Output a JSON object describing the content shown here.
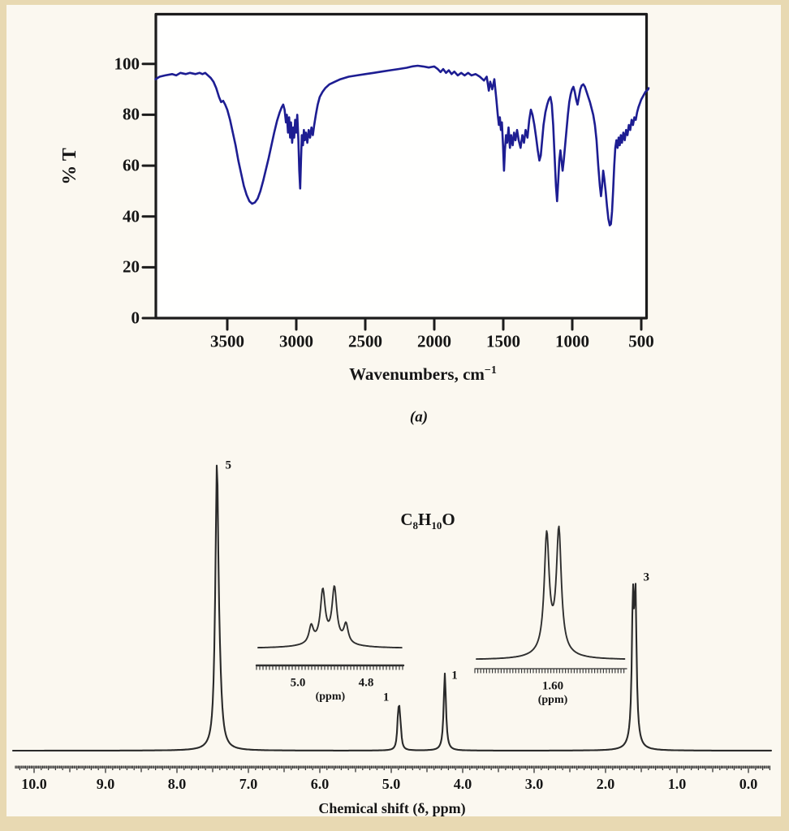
{
  "page": {
    "sheet_color": "#fbf8f0",
    "frame_color": "#e8d9b2",
    "text_color": "#161616"
  },
  "chart_data": [
    {
      "id": "ir",
      "type": "line",
      "panel_label": "(a)",
      "xlabel_base": "Wavenumbers, cm",
      "xlabel_sup": "−1",
      "ylabel": "% T",
      "x_ticks": [
        3500,
        3000,
        2500,
        2000,
        1500,
        1000,
        500
      ],
      "y_ticks": [
        100,
        80,
        60,
        40,
        20,
        0
      ],
      "xlim": [
        4020,
        447
      ],
      "ylim": [
        0,
        120
      ],
      "grid": false,
      "line_color": "#1d1d92",
      "points": [
        [
          4020,
          94
        ],
        [
          3990,
          95
        ],
        [
          3950,
          95.5
        ],
        [
          3900,
          96
        ],
        [
          3870,
          95.5
        ],
        [
          3840,
          96.5
        ],
        [
          3800,
          96
        ],
        [
          3770,
          96.5
        ],
        [
          3730,
          96
        ],
        [
          3700,
          96.5
        ],
        [
          3680,
          96
        ],
        [
          3660,
          96.5
        ],
        [
          3640,
          95.5
        ],
        [
          3620,
          94.5
        ],
        [
          3600,
          93
        ],
        [
          3580,
          90.5
        ],
        [
          3560,
          87
        ],
        [
          3545,
          85
        ],
        [
          3530,
          85.5
        ],
        [
          3515,
          84
        ],
        [
          3500,
          82
        ],
        [
          3480,
          78
        ],
        [
          3460,
          73
        ],
        [
          3440,
          68
        ],
        [
          3420,
          62
        ],
        [
          3400,
          57
        ],
        [
          3380,
          52
        ],
        [
          3360,
          48.5
        ],
        [
          3340,
          46
        ],
        [
          3320,
          45
        ],
        [
          3300,
          45.5
        ],
        [
          3280,
          47
        ],
        [
          3260,
          50
        ],
        [
          3240,
          54
        ],
        [
          3220,
          58.5
        ],
        [
          3200,
          63
        ],
        [
          3180,
          68
        ],
        [
          3160,
          73
        ],
        [
          3140,
          77.5
        ],
        [
          3120,
          81
        ],
        [
          3105,
          83
        ],
        [
          3095,
          84
        ],
        [
          3085,
          82
        ],
        [
          3075,
          77
        ],
        [
          3068,
          80
        ],
        [
          3060,
          73
        ],
        [
          3052,
          79
        ],
        [
          3045,
          71
        ],
        [
          3038,
          77
        ],
        [
          3030,
          69
        ],
        [
          3022,
          75
        ],
        [
          3015,
          71
        ],
        [
          3008,
          78
        ],
        [
          3000,
          73
        ],
        [
          2993,
          80
        ],
        [
          2985,
          70
        ],
        [
          2978,
          58
        ],
        [
          2972,
          51
        ],
        [
          2966,
          62
        ],
        [
          2960,
          72
        ],
        [
          2952,
          68
        ],
        [
          2945,
          74
        ],
        [
          2938,
          70
        ],
        [
          2930,
          73
        ],
        [
          2920,
          69
        ],
        [
          2910,
          74
        ],
        [
          2900,
          71
        ],
        [
          2890,
          75
        ],
        [
          2880,
          72
        ],
        [
          2870,
          76
        ],
        [
          2858,
          80
        ],
        [
          2845,
          84
        ],
        [
          2830,
          87
        ],
        [
          2810,
          89
        ],
        [
          2790,
          90.5
        ],
        [
          2760,
          92
        ],
        [
          2720,
          93
        ],
        [
          2680,
          94
        ],
        [
          2620,
          95
        ],
        [
          2560,
          95.5
        ],
        [
          2500,
          96
        ],
        [
          2440,
          96.5
        ],
        [
          2380,
          97
        ],
        [
          2320,
          97.5
        ],
        [
          2260,
          98
        ],
        [
          2200,
          98.5
        ],
        [
          2160,
          99
        ],
        [
          2120,
          99.3
        ],
        [
          2080,
          99
        ],
        [
          2040,
          98.6
        ],
        [
          2000,
          99
        ],
        [
          1975,
          98
        ],
        [
          1955,
          96.8
        ],
        [
          1935,
          98
        ],
        [
          1915,
          96.5
        ],
        [
          1895,
          97.5
        ],
        [
          1875,
          96
        ],
        [
          1855,
          97
        ],
        [
          1830,
          95.5
        ],
        [
          1805,
          96.5
        ],
        [
          1780,
          95.5
        ],
        [
          1755,
          96.5
        ],
        [
          1730,
          95.5
        ],
        [
          1700,
          96
        ],
        [
          1670,
          95
        ],
        [
          1640,
          93.5
        ],
        [
          1620,
          95
        ],
        [
          1605,
          89.5
        ],
        [
          1595,
          93
        ],
        [
          1580,
          90
        ],
        [
          1565,
          94
        ],
        [
          1550,
          86
        ],
        [
          1540,
          80
        ],
        [
          1532,
          76
        ],
        [
          1525,
          79
        ],
        [
          1517,
          74
        ],
        [
          1510,
          77
        ],
        [
          1502,
          68
        ],
        [
          1495,
          58
        ],
        [
          1488,
          66
        ],
        [
          1480,
          72
        ],
        [
          1472,
          69
        ],
        [
          1462,
          75
        ],
        [
          1452,
          67
        ],
        [
          1443,
          72
        ],
        [
          1432,
          68
        ],
        [
          1422,
          73
        ],
        [
          1412,
          70
        ],
        [
          1400,
          74
        ],
        [
          1388,
          70
        ],
        [
          1375,
          67
        ],
        [
          1362,
          72
        ],
        [
          1350,
          69
        ],
        [
          1338,
          74
        ],
        [
          1325,
          71
        ],
        [
          1312,
          78
        ],
        [
          1300,
          82
        ],
        [
          1288,
          80
        ],
        [
          1275,
          76
        ],
        [
          1262,
          71
        ],
        [
          1250,
          66
        ],
        [
          1238,
          62
        ],
        [
          1228,
          64
        ],
        [
          1218,
          70
        ],
        [
          1208,
          76
        ],
        [
          1195,
          81
        ],
        [
          1182,
          84
        ],
        [
          1170,
          86
        ],
        [
          1158,
          87
        ],
        [
          1148,
          84
        ],
        [
          1138,
          76
        ],
        [
          1128,
          64
        ],
        [
          1118,
          52
        ],
        [
          1110,
          46
        ],
        [
          1102,
          54
        ],
        [
          1094,
          62
        ],
        [
          1086,
          66
        ],
        [
          1078,
          62
        ],
        [
          1070,
          58
        ],
        [
          1062,
          62
        ],
        [
          1052,
          68
        ],
        [
          1042,
          74
        ],
        [
          1032,
          80
        ],
        [
          1022,
          85
        ],
        [
          1012,
          88
        ],
        [
          1002,
          90
        ],
        [
          992,
          91
        ],
        [
          982,
          89
        ],
        [
          972,
          86
        ],
        [
          962,
          84
        ],
        [
          952,
          87
        ],
        [
          942,
          90
        ],
        [
          932,
          91.5
        ],
        [
          920,
          92
        ],
        [
          908,
          91
        ],
        [
          896,
          89
        ],
        [
          884,
          87
        ],
        [
          872,
          85
        ],
        [
          860,
          82.5
        ],
        [
          848,
          80
        ],
        [
          836,
          76
        ],
        [
          824,
          70
        ],
        [
          812,
          60
        ],
        [
          800,
          52
        ],
        [
          792,
          48
        ],
        [
          784,
          52
        ],
        [
          776,
          58
        ],
        [
          768,
          55
        ],
        [
          758,
          50
        ],
        [
          748,
          44
        ],
        [
          738,
          39
        ],
        [
          728,
          36.5
        ],
        [
          720,
          37
        ],
        [
          712,
          42
        ],
        [
          704,
          50
        ],
        [
          696,
          60
        ],
        [
          688,
          67
        ],
        [
          680,
          70
        ],
        [
          672,
          67
        ],
        [
          664,
          71
        ],
        [
          656,
          68
        ],
        [
          648,
          72
        ],
        [
          640,
          69
        ],
        [
          630,
          73
        ],
        [
          620,
          70
        ],
        [
          610,
          74
        ],
        [
          600,
          72
        ],
        [
          590,
          76
        ],
        [
          580,
          74
        ],
        [
          570,
          78
        ],
        [
          560,
          76
        ],
        [
          550,
          79
        ],
        [
          540,
          78
        ],
        [
          530,
          81
        ],
        [
          520,
          83
        ],
        [
          510,
          84.5
        ],
        [
          500,
          86
        ],
        [
          490,
          87
        ],
        [
          480,
          88
        ],
        [
          470,
          89
        ],
        [
          460,
          89.5
        ],
        [
          450,
          90
        ],
        [
          447,
          90.5
        ]
      ]
    },
    {
      "id": "nmr",
      "type": "line",
      "formula_display": "C8H10O",
      "formula_parts": [
        "C",
        "8",
        "H",
        "10",
        "O"
      ],
      "xlabel": "Chemical shift (δ, ppm)",
      "x_tick_labels": [
        "10.0",
        "9.0",
        "8.0",
        "7.0",
        "6.0",
        "5.0",
        "4.0",
        "3.0",
        "2.0",
        "1.0",
        "0.0"
      ],
      "x_tick_ppms": [
        10.0,
        9.0,
        8.0,
        7.0,
        6.0,
        5.0,
        4.0,
        3.0,
        2.0,
        1.0,
        0.0
      ],
      "xlim": [
        10.3,
        -0.35
      ],
      "grid": false,
      "line_color": "#2a2a2a",
      "peaks": [
        {
          "ppm": 7.44,
          "integration": "5",
          "multiplicity": "multiplet",
          "components": [
            [
              7.465,
              30,
              2.0
            ],
            [
              7.44,
              315,
              2.1
            ],
            [
              7.405,
              55,
              3.2
            ]
          ],
          "label_dx": 14,
          "label_dy": 6
        },
        {
          "ppm": 4.89,
          "integration": "1",
          "multiplicity": "quartet",
          "components": [
            [
              4.905,
              26,
              1.3
            ],
            [
              4.888,
              40,
              1.5
            ],
            [
              4.868,
              14,
              1.3
            ]
          ],
          "label_dx": -16,
          "label_dy": -8
        },
        {
          "ppm": 4.25,
          "integration": "1",
          "multiplicity": "singlet",
          "components": [
            [
              4.25,
              95,
              1.7
            ]
          ],
          "label_dx": 12,
          "label_dy": 3
        },
        {
          "ppm": 1.6,
          "integration": "3",
          "multiplicity": "doublet",
          "components": [
            [
              1.617,
              160,
              1.55
            ],
            [
              1.581,
              165,
              1.55
            ],
            [
              1.6,
              14,
              6
            ]
          ],
          "label_dx": 15,
          "label_dy": -3
        }
      ],
      "insets": [
        {
          "tick_labels": [
            "5.0",
            "4.8"
          ],
          "tick_ppms": [
            5.0,
            4.8
          ],
          "unit_label": "(ppm)",
          "center_ppm": 4.905,
          "pattern": "quartet",
          "J_ppm": 0.034,
          "components": [
            [
              4.961,
              21,
              3.2
            ],
            [
              4.927,
              62,
              3.5
            ],
            [
              4.893,
              65,
              3.5
            ],
            [
              4.859,
              23,
              3.2
            ],
            [
              4.91,
              8,
              26
            ]
          ]
        },
        {
          "tick_labels": [
            "1.60"
          ],
          "tick_ppms": [
            1.6
          ],
          "unit_label": "(ppm)",
          "center_ppm": 1.6,
          "pattern": "doublet",
          "J_ppm": 0.036,
          "components": [
            [
              1.618,
              140,
              3.6
            ],
            [
              1.582,
              146,
              3.6
            ],
            [
              1.6,
              13,
              18
            ]
          ]
        }
      ]
    }
  ]
}
